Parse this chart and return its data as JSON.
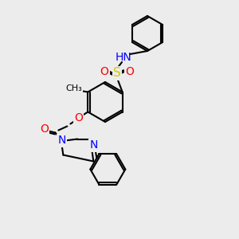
{
  "bg_color": "#ececec",
  "bond_color": "#000000",
  "bond_width": 1.5,
  "atom_colors": {
    "N": "#0000ff",
    "O": "#ff0000",
    "S": "#cccc00",
    "H": "#808080",
    "C": "#000000"
  },
  "font_size": 9
}
